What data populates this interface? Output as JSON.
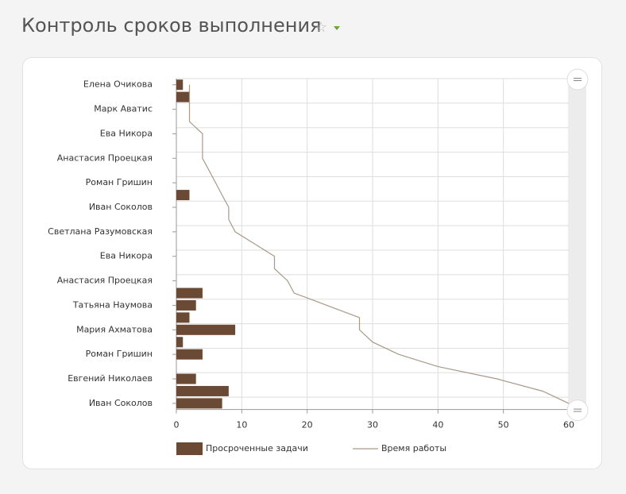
{
  "chart_data": {
    "type": "bar",
    "orientation": "horizontal",
    "title": "Контроль сроков выполнения",
    "categories": [
      "Елена Очикова",
      null,
      "Марк Аватис",
      null,
      "Ева Никора",
      null,
      "Анастасия Проецкая",
      null,
      "Роман Гришин",
      null,
      "Иван Соколов",
      null,
      "Светлана Разумовская",
      null,
      "Ева Никора",
      null,
      "Анастасия Проецкая",
      null,
      "Татьяна Наумова",
      null,
      "Мария Ахматова",
      null,
      "Роман Гришин",
      null,
      "Евгений Николаев",
      null,
      "Иван Соколов"
    ],
    "series": [
      {
        "name": "Просроченные задачи",
        "type": "bar",
        "color": "#6b4a35",
        "values": [
          1,
          2,
          0,
          0,
          0,
          0,
          0,
          0,
          0,
          2,
          0,
          0,
          0,
          0,
          0,
          0,
          0,
          4,
          3,
          2,
          9,
          1,
          4,
          0,
          3,
          8,
          7
        ]
      },
      {
        "name": "Время работы",
        "type": "line",
        "color": "#a89a8a",
        "values": [
          2,
          2,
          2,
          2,
          4,
          4,
          4,
          5,
          6,
          7,
          8,
          8,
          9,
          12,
          15,
          15,
          17,
          18,
          23,
          28,
          28,
          30,
          34,
          40,
          49,
          56,
          60
        ]
      }
    ],
    "xlim": [
      0,
      60
    ],
    "xticks": [
      0,
      10,
      20,
      30,
      40,
      50,
      60
    ],
    "grid": true,
    "legend": "bottom"
  }
}
